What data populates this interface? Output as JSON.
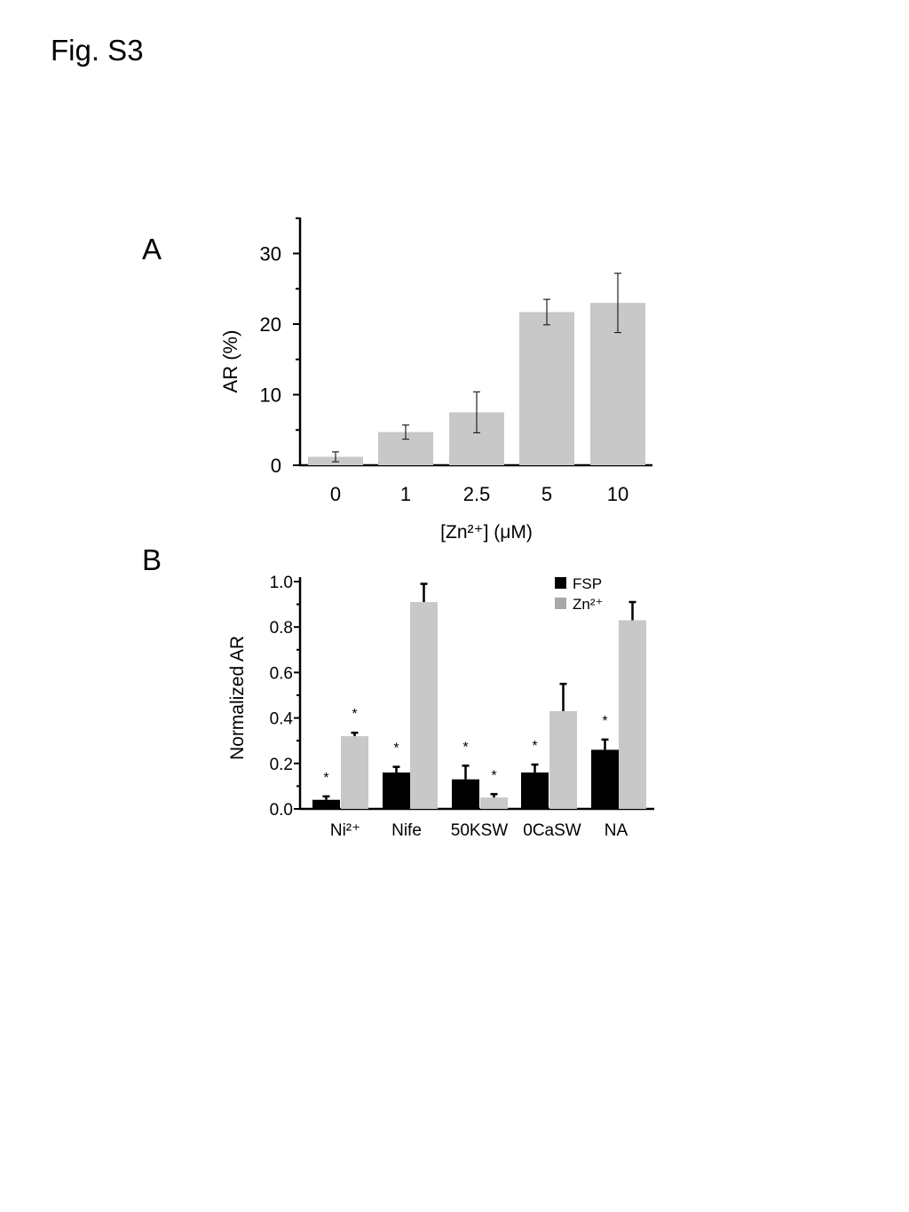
{
  "figure": {
    "title": "Fig. S3"
  },
  "colors": {
    "zn": "#c8c8c8",
    "fsp": "#000000",
    "legend_zn": "#a8a8a8",
    "axis": "#000000"
  },
  "chart_data": [
    {
      "panel": "A",
      "type": "bar",
      "title": "",
      "xlabel": "[Zn²⁺] (μM)",
      "ylabel": "AR (%)",
      "ylim": [
        0,
        35
      ],
      "yticks": [
        0,
        10,
        20,
        30
      ],
      "ytick_labels": [
        "0",
        "10",
        "20",
        "30"
      ],
      "categories": [
        "0",
        "1",
        "2.5",
        "5",
        "10"
      ],
      "values": [
        1.2,
        4.7,
        7.5,
        21.7,
        23.0
      ],
      "errors": [
        0.7,
        1.0,
        2.9,
        1.8,
        4.2
      ]
    },
    {
      "panel": "B",
      "type": "bar",
      "title": "",
      "xlabel": "",
      "ylabel": "Normalized AR",
      "ylim": [
        0,
        1.0
      ],
      "yticks": [
        0,
        0.2,
        0.4,
        0.6,
        0.8,
        1.0
      ],
      "ytick_labels": [
        "0.0",
        "0.2",
        "0.4",
        "0.6",
        "0.8",
        "1.0"
      ],
      "categories": [
        "Ni²⁺",
        "Nife",
        "50KSW",
        "0CaSW",
        "NA"
      ],
      "series": [
        {
          "name": "FSP",
          "values": [
            0.04,
            0.16,
            0.13,
            0.16,
            0.26
          ],
          "errors": [
            0.015,
            0.025,
            0.06,
            0.035,
            0.045
          ],
          "significant": [
            true,
            true,
            true,
            true,
            true
          ]
        },
        {
          "name": "Zn²⁺",
          "values": [
            0.32,
            0.91,
            0.05,
            0.43,
            0.83
          ],
          "errors": [
            0.015,
            0.08,
            0.015,
            0.12,
            0.08
          ],
          "significant": [
            true,
            false,
            true,
            false,
            false
          ]
        }
      ],
      "annotation": "*",
      "legend": {
        "position": "top-right",
        "entries": [
          "FSP",
          "Zn²⁺"
        ]
      }
    }
  ]
}
